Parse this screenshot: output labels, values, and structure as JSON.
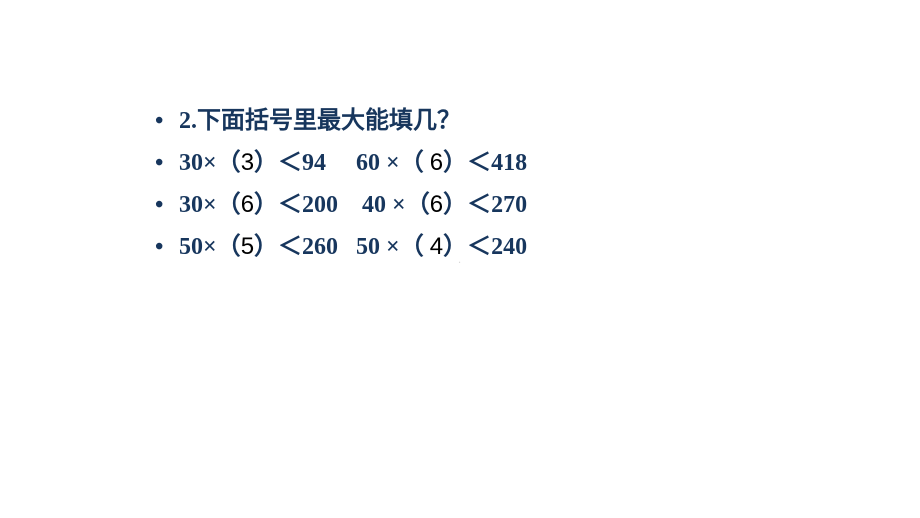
{
  "title_line": {
    "bullet": "•",
    "text": "2.下面括号里最大能填几？"
  },
  "rows": [
    {
      "bullet": "•",
      "left": {
        "prefix": "30×（",
        "answer": "3",
        "suffix": "）＜94"
      },
      "gap": "     ",
      "right": {
        "prefix": "60 ×（ ",
        "answer": "6",
        "suffix": "）＜418"
      }
    },
    {
      "bullet": "•",
      "left": {
        "prefix": "30×（",
        "answer": "6",
        "suffix": "）＜200"
      },
      "gap": "    ",
      "right": {
        "prefix": "40 ×（",
        "answer": "6",
        "suffix": "）＜270"
      }
    },
    {
      "bullet": "•",
      "left": {
        "prefix": "50×（",
        "answer": "5",
        "suffix": "）＜260"
      },
      "gap": "   ",
      "right": {
        "prefix": "50 ×（ ",
        "answer": "4",
        "suffix": "）＜240"
      }
    }
  ],
  "watermark": "."
}
